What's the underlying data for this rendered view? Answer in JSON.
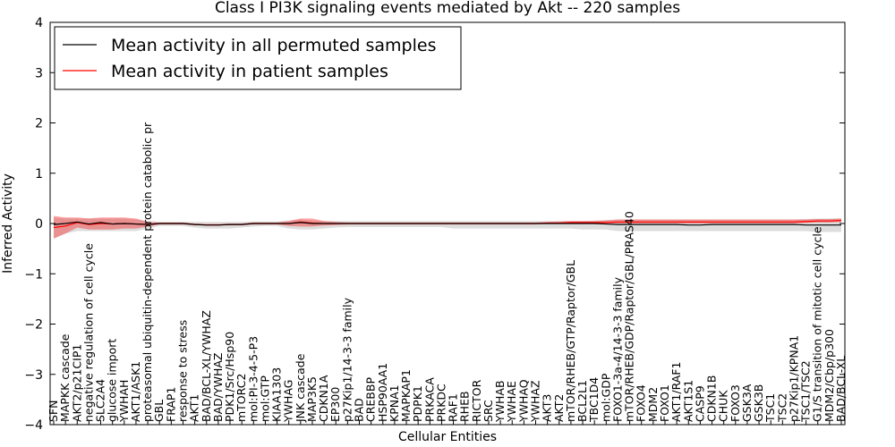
{
  "chart_data": {
    "type": "line",
    "title": "Class I PI3K signaling events mediated by Akt -- 220 samples",
    "xlabel": "Cellular Entities",
    "ylabel": "Inferred Activity",
    "ylim": [
      -4,
      4
    ],
    "yticks": [
      -4,
      -3,
      -2,
      -1,
      0,
      1,
      2,
      3,
      4
    ],
    "ytick_labels": [
      "−4",
      "−3",
      "−2",
      "−1",
      "0",
      "1",
      "2",
      "3",
      "4"
    ],
    "legend_position": "top-left",
    "legend": [
      {
        "label": "Mean activity in all permuted samples",
        "color": "#000000"
      },
      {
        "label": "Mean activity in patient samples",
        "color": "#ff0000"
      }
    ],
    "categories": [
      "SFN",
      "MAPKK cascade",
      "AKT2/p21CIP1",
      "negative regulation of cell cycle",
      "SLC2A4",
      "glucose import",
      "YWHAH",
      "AKT1/ASK1",
      "proteasomal ubiquitin-dependent protein catabolic pr",
      "GBL",
      "FRAP1",
      "response to stress",
      "AKT1",
      "BAD/BCL-XL/YWHAZ",
      "BAD/YWHAZ",
      "PDK1/Src/Hsp90",
      "mTORC2",
      "mol:PI-3-4-5-P3",
      "mol:GTP",
      "KIAA1303",
      "YWHAG",
      "JNK cascade",
      "MAP3K5",
      "CDKN1A",
      "EP300",
      "p27Kip1/14-3-3 family",
      "BAD",
      "CREBBP",
      "HSP90AA1",
      "KPNA1",
      "MAPKAP1",
      "PDPK1",
      "PRKACA",
      "PRKDC",
      "RAF1",
      "RHEB",
      "RICTOR",
      "SRC",
      "YWHAB",
      "YWHAE",
      "YWHAQ",
      "YWHAZ",
      "AKT3",
      "AKT2",
      "mTOR/RHEB/GTP/Raptor/GBL",
      "BCL2L1",
      "TBC1D4",
      "mol:GDP",
      "FOXO1-3a-4/14-3-3 family",
      "mTOR/RHEB/GDP/Raptor/GBL/PRAS40",
      "FOXO4",
      "MDM2",
      "FOXO1",
      "AKT1/RAF1",
      "AKT1S1",
      "CASP9",
      "CDKN1B",
      "CHUK",
      "FOXO3",
      "GSK3A",
      "GSK3B",
      "TSC1",
      "TSC2",
      "p27Kip1/KPNA1",
      "TSC1/TSC2",
      "G1/S transition of mitotic cell cycle",
      "MDM2/Cbp/p300",
      "BAD/BCL-XL"
    ],
    "series": [
      {
        "name": "Mean activity in all permuted samples",
        "color": "#000000",
        "values": [
          -0.02,
          0.0,
          0.03,
          -0.01,
          0.02,
          -0.01,
          0.0,
          -0.01,
          -0.02,
          0.0,
          0.0,
          0.0,
          -0.02,
          -0.03,
          -0.03,
          -0.02,
          -0.02,
          0.0,
          0.0,
          0.0,
          0.0,
          0.02,
          0.0,
          0.0,
          0.0,
          0.0,
          0.0,
          0.0,
          0.0,
          0.0,
          0.0,
          0.0,
          0.0,
          0.0,
          0.0,
          0.0,
          0.0,
          0.0,
          0.0,
          0.0,
          0.0,
          0.0,
          0.0,
          0.0,
          0.0,
          0.0,
          0.0,
          -0.01,
          -0.02,
          -0.02,
          -0.02,
          -0.02,
          -0.02,
          -0.02,
          -0.03,
          -0.03,
          -0.02,
          -0.02,
          -0.02,
          -0.02,
          -0.02,
          -0.02,
          -0.02,
          -0.02,
          -0.03,
          -0.03,
          -0.03,
          -0.03
        ],
        "band_lower": [
          -0.3,
          -0.2,
          -0.15,
          -0.15,
          -0.15,
          -0.15,
          -0.15,
          -0.15,
          -0.1,
          -0.05,
          -0.05,
          -0.05,
          -0.08,
          -0.1,
          -0.1,
          -0.1,
          -0.08,
          -0.06,
          -0.05,
          -0.05,
          -0.1,
          -0.12,
          -0.12,
          -0.1,
          -0.08,
          -0.07,
          -0.07,
          -0.07,
          -0.07,
          -0.07,
          -0.07,
          -0.07,
          -0.07,
          -0.07,
          -0.1,
          -0.1,
          -0.1,
          -0.1,
          -0.1,
          -0.1,
          -0.1,
          -0.1,
          -0.1,
          -0.1,
          -0.1,
          -0.12,
          -0.12,
          -0.12,
          -0.15,
          -0.15,
          -0.15,
          -0.15,
          -0.15,
          -0.15,
          -0.15,
          -0.15,
          -0.15,
          -0.15,
          -0.15,
          -0.15,
          -0.15,
          -0.15,
          -0.15,
          -0.15,
          -0.15,
          -0.17,
          -0.17,
          -0.17
        ],
        "band_upper": [
          0.12,
          0.1,
          0.1,
          0.1,
          0.1,
          0.1,
          0.1,
          0.08,
          0.05,
          0.03,
          0.03,
          0.03,
          0.03,
          0.03,
          0.03,
          0.03,
          0.03,
          0.04,
          0.04,
          0.04,
          0.06,
          0.08,
          0.06,
          0.05,
          0.05,
          0.05,
          0.05,
          0.05,
          0.05,
          0.05,
          0.05,
          0.05,
          0.05,
          0.05,
          0.05,
          0.05,
          0.05,
          0.05,
          0.05,
          0.05,
          0.05,
          0.05,
          0.05,
          0.05,
          0.05,
          0.05,
          0.06,
          0.07,
          0.08,
          0.08,
          0.08,
          0.08,
          0.08,
          0.08,
          0.08,
          0.08,
          0.08,
          0.08,
          0.08,
          0.08,
          0.08,
          0.08,
          0.08,
          0.08,
          0.09,
          0.1,
          0.1,
          0.1
        ]
      },
      {
        "name": "Mean activity in patient samples",
        "color": "#ff0000",
        "values": [
          -0.08,
          -0.05,
          0.02,
          -0.02,
          0.0,
          -0.01,
          0.0,
          -0.01,
          -0.02,
          0.0,
          0.0,
          0.0,
          -0.02,
          -0.03,
          -0.03,
          -0.02,
          -0.02,
          0.0,
          0.0,
          0.0,
          0.0,
          0.03,
          0.01,
          0.0,
          0.0,
          0.0,
          0.0,
          0.0,
          0.0,
          0.0,
          0.0,
          0.0,
          0.0,
          0.0,
          0.0,
          0.0,
          0.0,
          0.0,
          0.0,
          0.0,
          0.0,
          0.0,
          0.01,
          0.01,
          0.02,
          0.02,
          0.02,
          0.02,
          0.03,
          0.03,
          0.03,
          0.03,
          0.03,
          0.03,
          0.03,
          0.03,
          0.03,
          0.03,
          0.03,
          0.03,
          0.03,
          0.03,
          0.03,
          0.03,
          0.04,
          0.05,
          0.05,
          0.06
        ],
        "band_lower": [
          -0.3,
          -0.2,
          -0.08,
          -0.12,
          -0.12,
          -0.12,
          -0.1,
          -0.1,
          -0.06,
          -0.02,
          -0.02,
          -0.02,
          -0.03,
          -0.04,
          -0.04,
          -0.03,
          -0.03,
          -0.02,
          -0.02,
          -0.02,
          -0.05,
          -0.06,
          -0.06,
          -0.04,
          -0.03,
          -0.02,
          -0.02,
          -0.02,
          -0.02,
          -0.02,
          -0.02,
          -0.02,
          -0.02,
          -0.02,
          -0.02,
          -0.02,
          -0.02,
          -0.02,
          -0.02,
          -0.02,
          -0.02,
          -0.02,
          -0.01,
          0.0,
          0.0,
          0.0,
          0.0,
          0.0,
          0.0,
          0.0,
          0.0,
          0.0,
          0.0,
          0.0,
          0.0,
          0.0,
          0.0,
          0.0,
          0.0,
          0.0,
          0.0,
          0.0,
          0.0,
          0.0,
          0.01,
          0.02,
          0.02,
          0.03
        ],
        "band_upper": [
          0.15,
          0.12,
          0.12,
          0.1,
          0.12,
          0.12,
          0.12,
          0.1,
          0.03,
          0.02,
          0.02,
          0.02,
          0.0,
          -0.01,
          -0.01,
          0.0,
          0.0,
          0.02,
          0.02,
          0.02,
          0.05,
          0.1,
          0.1,
          0.05,
          0.03,
          0.02,
          0.02,
          0.02,
          0.02,
          0.02,
          0.02,
          0.02,
          0.02,
          0.02,
          0.02,
          0.02,
          0.02,
          0.02,
          0.02,
          0.02,
          0.02,
          0.02,
          0.03,
          0.04,
          0.05,
          0.05,
          0.05,
          0.06,
          0.08,
          0.08,
          0.08,
          0.08,
          0.08,
          0.08,
          0.08,
          0.08,
          0.08,
          0.08,
          0.08,
          0.08,
          0.08,
          0.08,
          0.08,
          0.08,
          0.08,
          0.09,
          0.09,
          0.1
        ]
      }
    ]
  }
}
